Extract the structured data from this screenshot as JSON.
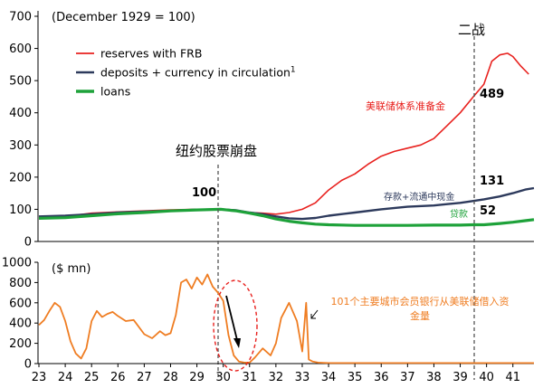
{
  "chart_data": [
    {
      "type": "line",
      "panel": "top",
      "note": "(December 1929 = 100)",
      "ylim": [
        0,
        700
      ],
      "yticks": [
        0,
        100,
        200,
        300,
        400,
        500,
        600,
        700
      ],
      "xlim": [
        23,
        41.8
      ],
      "legend": {
        "placement": "top-left",
        "entries": [
          {
            "series": "reserves",
            "label": "reserves with FRB"
          },
          {
            "series": "deposits",
            "label": "deposits + currency in circulation",
            "sup": "1"
          },
          {
            "series": "loans",
            "label": "loans"
          }
        ]
      },
      "series": [
        {
          "name": "reserves with FRB",
          "key": "reserves",
          "color": "#e8211e",
          "x": [
            23,
            24,
            25,
            26,
            27,
            28,
            29,
            29.9,
            30.5,
            31,
            31.5,
            32,
            32.5,
            33,
            33.5,
            34,
            34.5,
            35,
            35.5,
            36,
            36.5,
            37,
            37.5,
            38,
            38.5,
            39,
            39.5,
            39.9,
            40.2,
            40.5,
            40.8,
            41,
            41.3,
            41.6
          ],
          "y": [
            75,
            78,
            88,
            92,
            95,
            98,
            100,
            100,
            95,
            90,
            88,
            85,
            90,
            100,
            120,
            160,
            190,
            210,
            240,
            265,
            280,
            290,
            300,
            320,
            360,
            400,
            450,
            489,
            560,
            580,
            585,
            575,
            545,
            520
          ]
        },
        {
          "name": "deposits + currency in circulation",
          "key": "deposits",
          "color": "#2d3a5c",
          "x": [
            23,
            24,
            25,
            26,
            27,
            28,
            29,
            29.9,
            30.5,
            31,
            31.5,
            32,
            32.5,
            33,
            33.5,
            34,
            35,
            36,
            37,
            38,
            38.5,
            39,
            39.5,
            39.9,
            40.5,
            41,
            41.5,
            41.8
          ],
          "y": [
            78,
            80,
            85,
            90,
            93,
            96,
            99,
            100,
            97,
            90,
            85,
            78,
            72,
            70,
            73,
            80,
            90,
            100,
            108,
            112,
            116,
            120,
            126,
            131,
            140,
            150,
            162,
            166
          ]
        },
        {
          "name": "loans",
          "key": "loans",
          "color": "#1ea23a",
          "x": [
            23,
            24,
            25,
            26,
            27,
            28,
            29,
            29.9,
            30.5,
            31,
            31.5,
            32,
            32.5,
            33,
            33.5,
            34,
            35,
            36,
            37,
            38,
            38.5,
            39,
            39.5,
            39.9,
            40.5,
            41,
            41.5,
            41.8
          ],
          "y": [
            72,
            74,
            80,
            86,
            90,
            95,
            98,
            100,
            95,
            88,
            80,
            70,
            63,
            58,
            54,
            52,
            50,
            50,
            50,
            51,
            51,
            51,
            52,
            52,
            56,
            60,
            65,
            68
          ]
        }
      ],
      "end_labels": [
        {
          "series": "reserves",
          "text": "489"
        },
        {
          "series": "deposits",
          "text": "131"
        },
        {
          "series": "loans",
          "text": "52"
        }
      ],
      "point_label": {
        "text": "100",
        "x": 29.9,
        "y": 100
      },
      "annotations": [
        {
          "text": "美联储体系准备金",
          "color": "#e8211e",
          "near": "reserves"
        },
        {
          "text": "存款+流通中现金",
          "color": "#2d3a5c",
          "near": "deposits"
        },
        {
          "text": "贷款",
          "color": "#1ea23a",
          "near": "loans"
        },
        {
          "text": "纽约股票崩盘",
          "color": "#000000",
          "near": "crash-line"
        },
        {
          "text": "二战",
          "color": "#000000",
          "near": "ww2-line"
        }
      ]
    },
    {
      "type": "line",
      "panel": "bottom",
      "note": "($ mn)",
      "ylim": [
        0,
        1000
      ],
      "yticks": [
        0,
        200,
        400,
        600,
        800,
        1000
      ],
      "xlim": [
        23,
        41.8
      ],
      "xticks": [
        "23",
        "24",
        "25",
        "26",
        "27",
        "28",
        "29",
        "30",
        "31",
        "32",
        "33",
        "34",
        "35",
        "36",
        "37",
        "38",
        "39",
        "40",
        "41"
      ],
      "series": [
        {
          "name": "member bank borrowing",
          "key": "borrowing",
          "color": "#ef7d22",
          "x": [
            23,
            23.2,
            23.4,
            23.6,
            23.8,
            24,
            24.2,
            24.4,
            24.6,
            24.8,
            25,
            25.2,
            25.4,
            25.6,
            25.8,
            26,
            26.3,
            26.6,
            27,
            27.3,
            27.6,
            27.8,
            28,
            28.2,
            28.4,
            28.6,
            28.8,
            29,
            29.2,
            29.4,
            29.6,
            29.8,
            30,
            30.2,
            30.4,
            30.6,
            30.8,
            31,
            31.2,
            31.5,
            31.8,
            32,
            32.2,
            32.5,
            32.8,
            33,
            33.15,
            33.25,
            33.4,
            33.6,
            34,
            35,
            36,
            37,
            38,
            39,
            40,
            41,
            41.8
          ],
          "y": [
            380,
            430,
            520,
            600,
            560,
            420,
            220,
            100,
            50,
            150,
            420,
            520,
            460,
            490,
            510,
            470,
            420,
            430,
            290,
            250,
            320,
            280,
            300,
            480,
            800,
            830,
            740,
            850,
            780,
            880,
            760,
            700,
            620,
            280,
            80,
            20,
            10,
            10,
            60,
            150,
            80,
            200,
            450,
            600,
            420,
            120,
            600,
            40,
            20,
            10,
            5,
            5,
            5,
            5,
            5,
            5,
            5,
            5,
            5
          ]
        }
      ],
      "annotations": [
        {
          "text": "101个主要城市会员银行从美联储借入资",
          "color": "#ef7d22"
        },
        {
          "text": "金量",
          "color": "#ef7d22"
        }
      ]
    }
  ]
}
